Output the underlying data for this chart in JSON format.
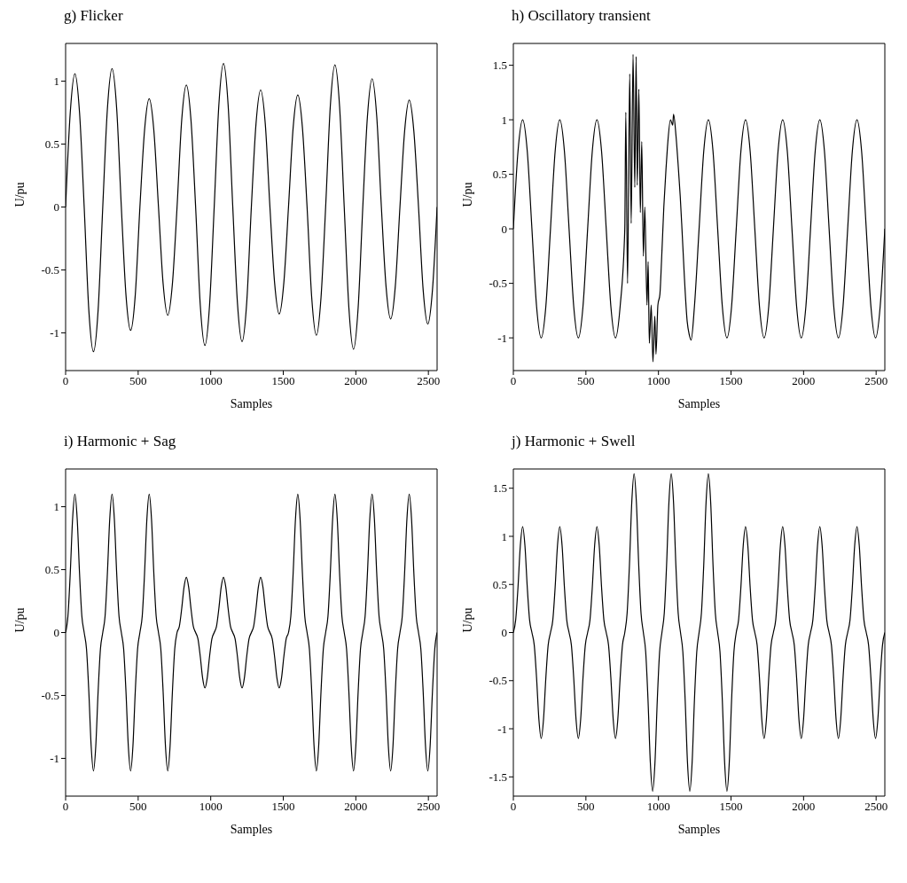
{
  "chart_data": [
    {
      "type": "line",
      "title": "g) Flicker",
      "xlabel": "Samples",
      "ylabel": "U/pu",
      "xlim": [
        0,
        2560
      ],
      "xticks": [
        0,
        500,
        1000,
        1500,
        2000,
        2500
      ],
      "ylim": [
        -1.3,
        1.3
      ],
      "yticks": [
        -1,
        -0.5,
        0,
        0.5,
        1
      ],
      "x": [
        0,
        32,
        64,
        96,
        128,
        160,
        192,
        224,
        256,
        288,
        320,
        352,
        384,
        416,
        448,
        480,
        512,
        544,
        576,
        608,
        640,
        672,
        704,
        736,
        768,
        800,
        832,
        864,
        896,
        928,
        960,
        992,
        1024,
        1056,
        1088,
        1120,
        1152,
        1184,
        1216,
        1248,
        1280,
        1312,
        1344,
        1376,
        1408,
        1440,
        1472,
        1504,
        1536,
        1568,
        1600,
        1632,
        1664,
        1696,
        1728,
        1760,
        1792,
        1824,
        1856,
        1888,
        1920,
        1952,
        1984,
        2016,
        2048,
        2080,
        2112,
        2144,
        2176,
        2208,
        2240,
        2272,
        2304,
        2336,
        2368,
        2400,
        2432,
        2464,
        2496,
        2528,
        2560
      ],
      "series": [
        {
          "color": "#000000",
          "values": [
            0,
            0.75,
            1.06,
            0.75,
            0,
            -0.82,
            -1.15,
            -0.82,
            0,
            0.78,
            1.1,
            0.78,
            0,
            -0.7,
            -0.98,
            -0.7,
            0,
            0.61,
            0.86,
            0.61,
            0,
            -0.61,
            -0.86,
            -0.61,
            0,
            0.69,
            0.97,
            0.69,
            0,
            -0.78,
            -1.1,
            -0.78,
            0,
            0.81,
            1.14,
            0.81,
            0,
            -0.76,
            -1.07,
            -0.76,
            0,
            0.66,
            0.93,
            0.66,
            0,
            -0.6,
            -0.85,
            -0.6,
            0,
            0.63,
            0.89,
            0.63,
            0,
            -0.72,
            -1.02,
            -0.72,
            0,
            0.8,
            1.13,
            0.8,
            0,
            -0.8,
            -1.13,
            -0.8,
            0,
            0.72,
            1.02,
            0.72,
            0,
            -0.63,
            -0.89,
            -0.63,
            0,
            0.6,
            0.85,
            0.6,
            0,
            -0.66,
            -0.93,
            -0.66,
            0
          ]
        }
      ]
    },
    {
      "type": "line",
      "title": "h) Oscillatory transient",
      "xlabel": "Samples",
      "ylabel": "U/pu",
      "xlim": [
        0,
        2560
      ],
      "xticks": [
        0,
        500,
        1000,
        1500,
        2000,
        2500
      ],
      "ylim": [
        -1.3,
        1.7
      ],
      "yticks": [
        -1,
        -0.5,
        0,
        0.5,
        1,
        1.5
      ],
      "x": [
        0,
        32,
        64,
        96,
        128,
        160,
        192,
        224,
        256,
        288,
        320,
        352,
        384,
        416,
        448,
        480,
        512,
        544,
        576,
        608,
        640,
        672,
        704,
        736,
        768,
        775,
        787,
        802,
        812,
        825,
        837,
        846,
        854,
        865,
        875,
        885,
        896,
        906,
        921,
        929,
        937,
        950,
        962,
        975,
        983,
        996,
        1010,
        1021,
        1037,
        1052,
        1062,
        1083,
        1098,
        1104,
        1121,
        1135,
        1150,
        1162,
        1177,
        1198,
        1212,
        1225,
        1248,
        1280,
        1312,
        1344,
        1376,
        1408,
        1440,
        1472,
        1504,
        1536,
        1568,
        1600,
        1632,
        1664,
        1696,
        1728,
        1760,
        1792,
        1824,
        1856,
        1888,
        1920,
        1952,
        1984,
        2016,
        2048,
        2080,
        2112,
        2144,
        2176,
        2208,
        2240,
        2272,
        2304,
        2336,
        2368,
        2400,
        2432,
        2464,
        2496,
        2528,
        2560
      ],
      "series": [
        {
          "color": "#000000",
          "values": [
            0,
            0.71,
            1,
            0.71,
            0,
            -0.71,
            -1,
            -0.71,
            0,
            0.71,
            1,
            0.71,
            0,
            -0.71,
            -1,
            -0.71,
            0,
            0.71,
            1,
            0.71,
            0,
            -0.71,
            -1,
            -0.71,
            0,
            1.07,
            -0.5,
            1.42,
            0.05,
            1.6,
            0.38,
            1.58,
            0.4,
            1.28,
            0.15,
            0.8,
            -0.25,
            0.2,
            -0.7,
            -0.3,
            -1.05,
            -0.7,
            -1.22,
            -0.8,
            -1.15,
            -0.7,
            -0.6,
            -0.3,
            0.2,
            0.55,
            0.75,
            1,
            0.95,
            1.05,
            0.85,
            0.6,
            0.3,
            0,
            -0.4,
            -0.85,
            -0.97,
            -1.02,
            -0.71,
            0,
            0.71,
            1,
            0.71,
            0,
            -0.71,
            -1,
            -0.71,
            0,
            0.71,
            1,
            0.71,
            0,
            -0.71,
            -1,
            -0.71,
            0,
            0.71,
            1,
            0.71,
            0,
            -0.71,
            -1,
            -0.71,
            0,
            0.71,
            1,
            0.71,
            0,
            -0.71,
            -1,
            -0.71,
            0,
            0.71,
            1,
            0.71,
            0,
            -0.71,
            -1,
            -0.71,
            0
          ]
        }
      ]
    },
    {
      "type": "line",
      "title": "i) Harmonic + Sag",
      "xlabel": "Samples",
      "ylabel": "U/pu",
      "xlim": [
        0,
        2560
      ],
      "xticks": [
        0,
        500,
        1000,
        1500,
        2000,
        2500
      ],
      "ylim": [
        -1.3,
        1.3
      ],
      "yticks": [
        -1,
        -0.5,
        0,
        0.5,
        1
      ],
      "x": [
        0,
        16,
        32,
        48,
        64,
        80,
        96,
        112,
        128,
        144,
        160,
        176,
        192,
        208,
        224,
        240,
        256,
        272,
        288,
        304,
        320,
        336,
        352,
        368,
        384,
        400,
        416,
        432,
        448,
        464,
        480,
        496,
        512,
        528,
        544,
        560,
        576,
        592,
        608,
        624,
        640,
        656,
        672,
        688,
        704,
        720,
        736,
        752,
        768,
        784,
        800,
        816,
        832,
        848,
        864,
        880,
        896,
        912,
        928,
        944,
        960,
        976,
        992,
        1008,
        1024,
        1040,
        1056,
        1072,
        1088,
        1104,
        1120,
        1136,
        1152,
        1168,
        1184,
        1200,
        1216,
        1232,
        1248,
        1264,
        1280,
        1296,
        1312,
        1328,
        1344,
        1360,
        1376,
        1392,
        1408,
        1424,
        1440,
        1456,
        1472,
        1488,
        1504,
        1520,
        1536,
        1552,
        1568,
        1584,
        1600,
        1616,
        1632,
        1648,
        1664,
        1680,
        1696,
        1712,
        1728,
        1744,
        1760,
        1776,
        1792,
        1808,
        1824,
        1840,
        1856,
        1872,
        1888,
        1904,
        1920,
        1936,
        1952,
        1968,
        1984,
        2000,
        2016,
        2032,
        2048,
        2064,
        2080,
        2096,
        2112,
        2128,
        2144,
        2160,
        2176,
        2192,
        2208,
        2224,
        2240,
        2256,
        2272,
        2288,
        2304,
        2320,
        2336,
        2352,
        2368,
        2384,
        2400,
        2416,
        2432,
        2448,
        2464,
        2480,
        2496,
        2512,
        2528,
        2544,
        2560
      ],
      "series": [
        {
          "color": "#000000",
          "values": [
            0,
            0.13,
            0.47,
            0.9,
            1.1,
            0.9,
            0.47,
            0.13,
            0,
            -0.13,
            -0.47,
            -0.9,
            -1.1,
            -0.9,
            -0.47,
            -0.13,
            0,
            0.13,
            0.47,
            0.9,
            1.1,
            0.9,
            0.47,
            0.13,
            0,
            -0.13,
            -0.47,
            -0.9,
            -1.1,
            -0.9,
            -0.47,
            -0.13,
            0,
            0.13,
            0.47,
            0.9,
            1.1,
            0.9,
            0.47,
            0.13,
            0,
            -0.13,
            -0.47,
            -0.9,
            -1.1,
            -0.9,
            -0.47,
            -0.13,
            0,
            0.05,
            0.19,
            0.36,
            0.44,
            0.36,
            0.19,
            0.05,
            0,
            -0.05,
            -0.19,
            -0.36,
            -0.44,
            -0.36,
            -0.19,
            -0.05,
            0,
            0.05,
            0.19,
            0.36,
            0.44,
            0.36,
            0.19,
            0.05,
            0,
            -0.05,
            -0.19,
            -0.36,
            -0.44,
            -0.36,
            -0.19,
            -0.05,
            0,
            0.05,
            0.19,
            0.36,
            0.44,
            0.36,
            0.19,
            0.05,
            0,
            -0.05,
            -0.19,
            -0.36,
            -0.44,
            -0.36,
            -0.19,
            -0.05,
            0,
            0.13,
            0.47,
            0.9,
            1.1,
            0.9,
            0.47,
            0.13,
            0,
            -0.13,
            -0.47,
            -0.9,
            -1.1,
            -0.9,
            -0.47,
            -0.13,
            0,
            0.13,
            0.47,
            0.9,
            1.1,
            0.9,
            0.47,
            0.13,
            0,
            -0.13,
            -0.47,
            -0.9,
            -1.1,
            -0.9,
            -0.47,
            -0.13,
            0,
            0.13,
            0.47,
            0.9,
            1.1,
            0.9,
            0.47,
            0.13,
            0,
            -0.13,
            -0.47,
            -0.9,
            -1.1,
            -0.9,
            -0.47,
            -0.13,
            0,
            0.13,
            0.47,
            0.9,
            1.1,
            0.9,
            0.47,
            0.13,
            0,
            -0.13,
            -0.47,
            -0.9,
            -1.1,
            -0.9,
            -0.47,
            -0.13,
            0
          ]
        }
      ]
    },
    {
      "type": "line",
      "title": "j) Harmonic + Swell",
      "xlabel": "Samples",
      "ylabel": "U/pu",
      "xlim": [
        0,
        2560
      ],
      "xticks": [
        0,
        500,
        1000,
        1500,
        2000,
        2500
      ],
      "ylim": [
        -1.7,
        1.7
      ],
      "yticks": [
        -1.5,
        -1,
        -0.5,
        0,
        0.5,
        1,
        1.5
      ],
      "x": [
        0,
        16,
        32,
        48,
        64,
        80,
        96,
        112,
        128,
        144,
        160,
        176,
        192,
        208,
        224,
        240,
        256,
        272,
        288,
        304,
        320,
        336,
        352,
        368,
        384,
        400,
        416,
        432,
        448,
        464,
        480,
        496,
        512,
        528,
        544,
        560,
        576,
        592,
        608,
        624,
        640,
        656,
        672,
        688,
        704,
        720,
        736,
        752,
        768,
        784,
        800,
        816,
        832,
        848,
        864,
        880,
        896,
        912,
        928,
        944,
        960,
        976,
        992,
        1008,
        1024,
        1040,
        1056,
        1072,
        1088,
        1104,
        1120,
        1136,
        1152,
        1168,
        1184,
        1200,
        1216,
        1232,
        1248,
        1264,
        1280,
        1296,
        1312,
        1328,
        1344,
        1360,
        1376,
        1392,
        1408,
        1424,
        1440,
        1456,
        1472,
        1488,
        1504,
        1520,
        1536,
        1552,
        1568,
        1584,
        1600,
        1616,
        1632,
        1648,
        1664,
        1680,
        1696,
        1712,
        1728,
        1744,
        1760,
        1776,
        1792,
        1808,
        1824,
        1840,
        1856,
        1872,
        1888,
        1904,
        1920,
        1936,
        1952,
        1968,
        1984,
        2000,
        2016,
        2032,
        2048,
        2064,
        2080,
        2096,
        2112,
        2128,
        2144,
        2160,
        2176,
        2192,
        2208,
        2224,
        2240,
        2256,
        2272,
        2288,
        2304,
        2320,
        2336,
        2352,
        2368,
        2384,
        2400,
        2416,
        2432,
        2448,
        2464,
        2480,
        2496,
        2512,
        2528,
        2544,
        2560
      ],
      "series": [
        {
          "color": "#000000",
          "values": [
            0,
            0.13,
            0.47,
            0.9,
            1.1,
            0.9,
            0.47,
            0.13,
            0,
            -0.13,
            -0.47,
            -0.9,
            -1.1,
            -0.9,
            -0.47,
            -0.13,
            0,
            0.13,
            0.47,
            0.9,
            1.1,
            0.9,
            0.47,
            0.13,
            0,
            -0.13,
            -0.47,
            -0.9,
            -1.1,
            -0.9,
            -0.47,
            -0.13,
            0,
            0.13,
            0.47,
            0.9,
            1.1,
            0.9,
            0.47,
            0.13,
            0,
            -0.13,
            -0.47,
            -0.9,
            -1.1,
            -0.9,
            -0.47,
            -0.13,
            0,
            0.2,
            0.7,
            1.35,
            1.65,
            1.35,
            0.7,
            0.2,
            0,
            -0.2,
            -0.7,
            -1.35,
            -1.65,
            -1.35,
            -0.7,
            -0.2,
            0,
            0.2,
            0.7,
            1.35,
            1.65,
            1.35,
            0.7,
            0.2,
            0,
            -0.2,
            -0.7,
            -1.35,
            -1.65,
            -1.35,
            -0.7,
            -0.2,
            0,
            0.2,
            0.7,
            1.35,
            1.65,
            1.35,
            0.7,
            0.2,
            0,
            -0.2,
            -0.7,
            -1.35,
            -1.65,
            -1.35,
            -0.7,
            -0.2,
            0,
            0.13,
            0.47,
            0.9,
            1.1,
            0.9,
            0.47,
            0.13,
            0,
            -0.13,
            -0.47,
            -0.9,
            -1.1,
            -0.9,
            -0.47,
            -0.13,
            0,
            0.13,
            0.47,
            0.9,
            1.1,
            0.9,
            0.47,
            0.13,
            0,
            -0.13,
            -0.47,
            -0.9,
            -1.1,
            -0.9,
            -0.47,
            -0.13,
            0,
            0.13,
            0.47,
            0.9,
            1.1,
            0.9,
            0.47,
            0.13,
            0,
            -0.13,
            -0.47,
            -0.9,
            -1.1,
            -0.9,
            -0.47,
            -0.13,
            0,
            0.13,
            0.47,
            0.9,
            1.1,
            0.9,
            0.47,
            0.13,
            0,
            -0.13,
            -0.47,
            -0.9,
            -1.1,
            -0.9,
            -0.47,
            -0.13,
            0
          ]
        }
      ]
    }
  ]
}
